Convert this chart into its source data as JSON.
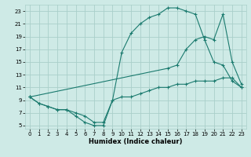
{
  "xlabel": "Humidex (Indice chaleur)",
  "bg_color": "#ceeae6",
  "grid_color": "#aacfca",
  "line_color": "#1a7a6e",
  "xlim": [
    -0.5,
    23.5
  ],
  "ylim": [
    4.5,
    24.0
  ],
  "xticks": [
    0,
    1,
    2,
    3,
    4,
    5,
    6,
    7,
    8,
    9,
    10,
    11,
    12,
    13,
    14,
    15,
    16,
    17,
    18,
    19,
    20,
    21,
    22,
    23
  ],
  "yticks": [
    5,
    7,
    9,
    11,
    13,
    15,
    17,
    19,
    21,
    23
  ],
  "line1_x": [
    0,
    1,
    2,
    3,
    4,
    5,
    6,
    7,
    8,
    9,
    10,
    11,
    12,
    13,
    14,
    15,
    16,
    17,
    18,
    19,
    20,
    21,
    22,
    23
  ],
  "line1_y": [
    9.5,
    8.5,
    8.0,
    7.5,
    7.5,
    7.0,
    6.5,
    5.5,
    5.5,
    9.0,
    9.5,
    9.5,
    10.0,
    10.5,
    11.0,
    11.0,
    11.5,
    11.5,
    12.0,
    12.0,
    12.0,
    12.5,
    12.5,
    11.0
  ],
  "line2_x": [
    0,
    1,
    2,
    3,
    4,
    5,
    6,
    7,
    8,
    9,
    10,
    11,
    12,
    13,
    14,
    15,
    16,
    17,
    18,
    19,
    20,
    21,
    22,
    23
  ],
  "line2_y": [
    9.5,
    8.5,
    8.0,
    7.5,
    7.5,
    6.5,
    5.5,
    5.0,
    5.0,
    9.0,
    16.5,
    19.5,
    21.0,
    22.0,
    22.5,
    23.5,
    23.5,
    23.0,
    22.5,
    18.5,
    15.0,
    14.5,
    12.0,
    11.0
  ],
  "line3_x": [
    0,
    15,
    16,
    17,
    18,
    19,
    20,
    21,
    22,
    23
  ],
  "line3_y": [
    9.5,
    14.0,
    14.5,
    17.0,
    18.5,
    19.0,
    18.5,
    22.5,
    15.0,
    11.5
  ]
}
